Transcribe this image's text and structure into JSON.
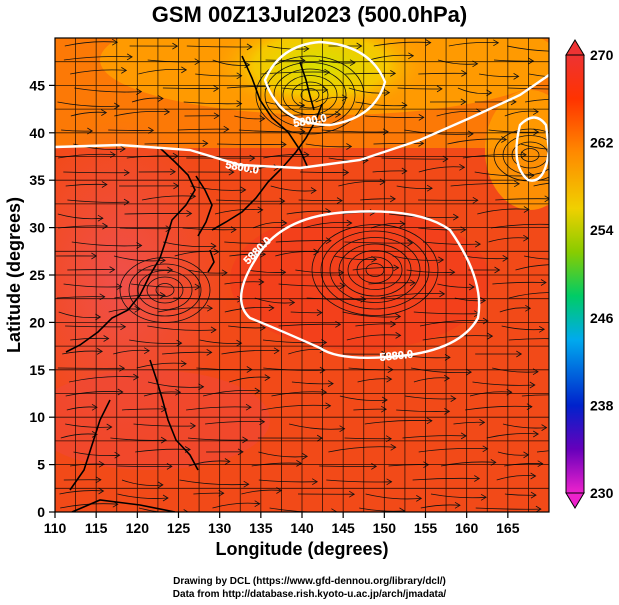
{
  "title": "GSM 00Z13Jul2023 (500.0hPa)",
  "xlabel": "Longitude (degrees)",
  "ylabel": "Latitude  (degrees)",
  "credits": [
    "Drawing by DCL (https://www.gfd-dennou.org/library/dcl/)",
    "Data from http://database.rish.kyoto-u.ac.jp/arch/jmadata/"
  ],
  "map_data": {
    "lon_range": [
      110,
      170
    ],
    "lat_range": [
      0,
      50
    ],
    "x_ticks": [
      "110",
      "115",
      "120",
      "125",
      "130",
      "135",
      "140",
      "145",
      "150",
      "155",
      "160",
      "165"
    ],
    "y_ticks": [
      "0",
      "5",
      "10",
      "15",
      "20",
      "25",
      "30",
      "35",
      "40",
      "45"
    ],
    "colorbar": {
      "labels": [
        "270",
        "262",
        "254",
        "246",
        "238",
        "230"
      ],
      "range": [
        230,
        270
      ],
      "stops": [
        "#ee22cc",
        "#6600bb",
        "#0022cc",
        "#00aaee",
        "#00cc66",
        "#88cc00",
        "#f0d000",
        "#ff8800",
        "#ff3300",
        "#ee3333"
      ]
    },
    "contours": [
      {
        "label": "5800.0"
      },
      {
        "label": "5800.0"
      },
      {
        "label": "5880.0"
      },
      {
        "label": "5880.0"
      }
    ]
  }
}
